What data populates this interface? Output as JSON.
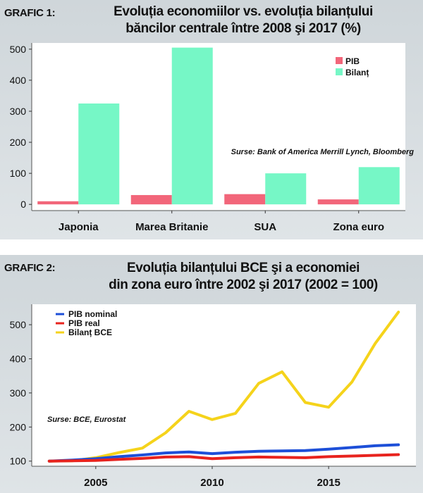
{
  "chart1": {
    "tag": "GRAFIC 1:",
    "title_line1": "Evoluția economiilor vs. evoluția bilanțului",
    "title_line2": "băncilor centrale între 2008 şi 2017 (%)",
    "source": "Surse: Bank of America Merrill Lynch, Bloomberg"
  },
  "chart2": {
    "tag": "GRAFIC 2:",
    "title_line1": "Evoluția bilanțului BCE şi a economiei",
    "title_line2": "din zona euro între 2002 şi 2017 (2002 = 100)",
    "source": "Surse: BCE, Eurostat"
  },
  "chart_data": [
    {
      "type": "bar",
      "title": "Evoluția economiilor vs. evoluția bilanțului băncilor centrale între 2008 şi 2017 (%)",
      "categories": [
        "Japonia",
        "Marea Britanie",
        "SUA",
        "Zona euro"
      ],
      "series": [
        {
          "name": "PIB",
          "color": "#f2667a",
          "values": [
            10,
            30,
            33,
            16
          ]
        },
        {
          "name": "Bilanț",
          "color": "#76f7c6",
          "values": [
            325,
            505,
            100,
            120
          ]
        }
      ],
      "ylim": [
        -20,
        520
      ],
      "yticks": [
        0,
        100,
        200,
        300,
        400,
        500
      ],
      "legend": "top-right",
      "grid": false
    },
    {
      "type": "line",
      "title": "Evoluția bilanțului BCE şi a economiei din zona euro între 2002 şi 2017 (2002 = 100)",
      "x": [
        2003,
        2004,
        2005,
        2006,
        2007,
        2008,
        2009,
        2010,
        2011,
        2012,
        2013,
        2014,
        2015,
        2016,
        2017,
        2018
      ],
      "series": [
        {
          "name": "PIB nominal",
          "color": "#1d4fd8",
          "values": [
            100,
            103,
            107,
            113,
            118,
            124,
            127,
            122,
            126,
            129,
            130,
            131,
            135,
            140,
            145,
            148
          ]
        },
        {
          "name": "PIB real",
          "color": "#e8231e",
          "values": [
            100,
            101,
            102,
            105,
            108,
            112,
            113,
            107,
            110,
            112,
            111,
            110,
            113,
            115,
            117,
            119
          ]
        },
        {
          "name": "Bilanț BCE",
          "color": "#f5d31b",
          "values": [
            100,
            101,
            110,
            125,
            138,
            183,
            246,
            222,
            240,
            328,
            362,
            272,
            258,
            332,
            445,
            537
          ]
        }
      ],
      "xlim": [
        2002.25,
        2018.75
      ],
      "xticks": [
        2005,
        2010,
        2015
      ],
      "ylim": [
        85,
        560
      ],
      "yticks": [
        100,
        200,
        300,
        400,
        500
      ],
      "legend": "top-left",
      "grid": false
    }
  ]
}
